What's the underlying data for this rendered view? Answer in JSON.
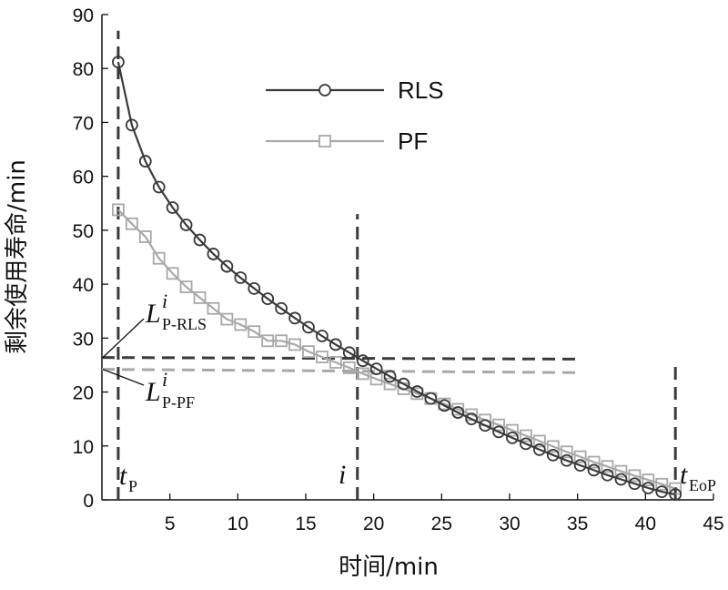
{
  "chart_data": {
    "type": "line",
    "xlabel": "时间/min",
    "ylabel": "剩余使用寿命/min",
    "xlim": [
      0,
      45
    ],
    "ylim": [
      0,
      90
    ],
    "xticks": [
      5,
      10,
      15,
      20,
      25,
      30,
      35,
      40,
      45
    ],
    "yticks": [
      0,
      10,
      20,
      30,
      40,
      50,
      60,
      70,
      80,
      90
    ],
    "grid": false,
    "legend_position": "top-center",
    "colors": {
      "RLS": "#3a3a3a",
      "PF": "#a8a8a8",
      "guide_dark": "#3a3a3a",
      "guide_light": "#a8a8a8"
    },
    "series": [
      {
        "name": "RLS",
        "marker": "circle",
        "x": [
          1.2,
          2.2,
          3.2,
          4.2,
          5.2,
          6.2,
          7.2,
          8.2,
          9.2,
          10.2,
          11.2,
          12.2,
          13.2,
          14.2,
          15.2,
          16.2,
          17.2,
          18.2,
          19.2,
          20.2,
          21.2,
          22.2,
          23.2,
          24.2,
          25.2,
          26.2,
          27.2,
          28.2,
          29.2,
          30.2,
          31.2,
          32.2,
          33.2,
          34.2,
          35.2,
          36.2,
          37.2,
          38.2,
          39.2,
          40.2,
          41.2,
          42.2
        ],
        "y": [
          81.2,
          69.5,
          62.8,
          58.0,
          54.2,
          51.0,
          48.2,
          45.6,
          43.3,
          41.2,
          39.2,
          37.3,
          35.5,
          33.7,
          32.0,
          30.4,
          28.8,
          27.3,
          25.8,
          24.3,
          22.9,
          21.5,
          20.1,
          18.8,
          17.5,
          16.2,
          15.0,
          13.8,
          12.6,
          11.5,
          10.4,
          9.3,
          8.3,
          7.3,
          6.4,
          5.5,
          4.6,
          3.8,
          3.0,
          2.2,
          1.5,
          1.0
        ]
      },
      {
        "name": "PF",
        "marker": "square",
        "x": [
          1.2,
          2.2,
          3.2,
          4.2,
          5.2,
          6.2,
          7.2,
          8.2,
          9.2,
          10.2,
          11.2,
          12.2,
          13.2,
          14.2,
          15.2,
          16.2,
          17.2,
          18.2,
          19.2,
          20.2,
          21.2,
          22.2,
          23.2,
          24.2,
          25.2,
          26.2,
          27.2,
          28.2,
          29.2,
          30.2,
          31.2,
          32.2,
          33.2,
          34.2,
          35.2,
          36.2,
          37.2,
          38.2,
          39.2,
          40.2,
          41.2,
          42.2
        ],
        "y": [
          53.8,
          51.2,
          48.8,
          44.8,
          42.0,
          39.5,
          37.5,
          35.5,
          33.5,
          32.5,
          31.2,
          29.5,
          29.5,
          28.8,
          27.5,
          26.5,
          25.5,
          24.5,
          23.4,
          22.4,
          21.5,
          20.6,
          19.7,
          18.8,
          17.8,
          16.8,
          15.8,
          14.8,
          13.9,
          12.9,
          11.9,
          10.9,
          9.9,
          8.9,
          8.0,
          7.0,
          6.2,
          5.3,
          4.5,
          3.7,
          2.9,
          2.1
        ]
      }
    ],
    "guides": {
      "vertical": [
        {
          "id": "tP",
          "x": 1.2,
          "y_top": 87,
          "color": "dark"
        },
        {
          "id": "i",
          "x": 18.8,
          "y_top": 53,
          "color": "dark"
        },
        {
          "id": "tEoP",
          "x": 42.2,
          "y_top": 26,
          "color": "dark"
        }
      ],
      "horizontal": [
        {
          "id": "L_RLS",
          "y_start": 26.4,
          "y_end": 26.1,
          "x_end": 35,
          "color": "dark"
        },
        {
          "id": "L_PF",
          "y_start": 24.2,
          "y_end": 23.6,
          "x_end": 35,
          "color": "light"
        }
      ]
    },
    "annotations": {
      "L_RLS": {
        "main": "L",
        "sup": "i",
        "sub": "P-RLS"
      },
      "L_PF": {
        "main": "L",
        "sup": "i",
        "sub": "P-PF"
      },
      "tP": {
        "main": "t",
        "sub": "P"
      },
      "i": {
        "main": "i"
      },
      "tEoP": {
        "main": "t",
        "sub": "EoP"
      }
    }
  }
}
